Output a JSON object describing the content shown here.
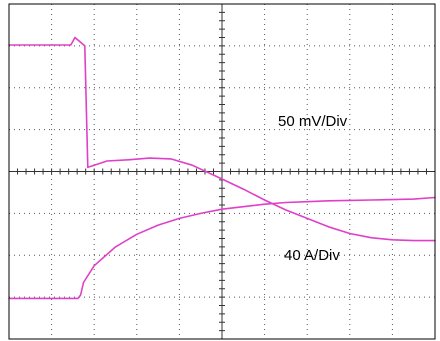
{
  "chart_data": {
    "type": "line",
    "title": "",
    "xlabel": "",
    "ylabel": "",
    "grid": true,
    "grid_divisions": {
      "x": 10,
      "y": 8
    },
    "xlim": [
      0,
      10
    ],
    "ylim": [
      0,
      8
    ],
    "trace_color": "#e040c8",
    "series": [
      {
        "annotation": "50 mV/Div",
        "x": [
          0,
          1.45,
          1.55,
          1.78,
          1.85,
          2.0,
          2.3,
          2.8,
          3.3,
          3.8,
          4.3,
          5.0,
          5.5,
          6.0,
          6.5,
          7.0,
          7.5,
          8.0,
          8.5,
          9.0,
          9.5,
          10.0
        ],
        "y": [
          7.02,
          7.02,
          7.2,
          7.0,
          4.1,
          4.15,
          4.25,
          4.28,
          4.32,
          4.3,
          4.15,
          3.82,
          3.58,
          3.32,
          3.08,
          2.88,
          2.68,
          2.52,
          2.42,
          2.37,
          2.35,
          2.35
        ]
      },
      {
        "annotation": "40 A/Div",
        "x": [
          0,
          1.62,
          1.68,
          1.75,
          2.0,
          2.5,
          3.0,
          3.5,
          4.0,
          4.5,
          5.0,
          5.5,
          6.0,
          6.5,
          7.0,
          7.5,
          8.0,
          8.5,
          9.0,
          9.5,
          10.0
        ],
        "y": [
          0.97,
          0.97,
          1.05,
          1.35,
          1.75,
          2.2,
          2.5,
          2.72,
          2.88,
          3.0,
          3.1,
          3.16,
          3.22,
          3.26,
          3.28,
          3.3,
          3.31,
          3.32,
          3.33,
          3.34,
          3.38
        ]
      }
    ]
  }
}
